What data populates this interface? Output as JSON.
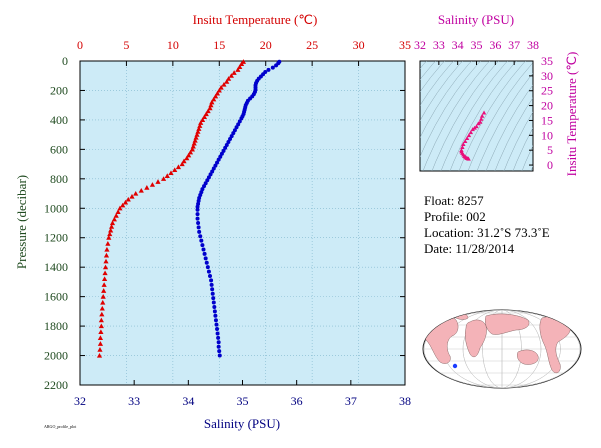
{
  "chart_data": [
    {
      "type": "scatter",
      "top_axis": {
        "label": "Insitu Temperature (℃)",
        "ticks": [
          0,
          5,
          10,
          15,
          20,
          25,
          30,
          35
        ],
        "range": [
          0,
          35
        ],
        "color": "#d40000"
      },
      "bottom_axis": {
        "label": "Salinity (PSU)",
        "ticks": [
          32,
          33,
          34,
          35,
          36,
          37,
          38
        ],
        "range": [
          32,
          38
        ],
        "color": "#000080"
      },
      "left_axis": {
        "label": "Pressure (decibar)",
        "ticks": [
          0,
          200,
          400,
          600,
          800,
          1000,
          1200,
          1400,
          1600,
          1800,
          2000,
          2200
        ],
        "range": [
          0,
          2200
        ],
        "inverted": true
      },
      "background": "#cdebf7",
      "series": [
        {
          "color": "#e00000",
          "marker": "triangle",
          "points": [
            [
              17.6,
              5
            ],
            [
              17.4,
              20
            ],
            [
              17.2,
              40
            ],
            [
              17.0,
              60
            ],
            [
              16.6,
              80
            ],
            [
              16.3,
              100
            ],
            [
              16.0,
              120
            ],
            [
              15.8,
              140
            ],
            [
              15.5,
              160
            ],
            [
              15.2,
              180
            ],
            [
              15.0,
              200
            ],
            [
              14.8,
              220
            ],
            [
              14.6,
              240
            ],
            [
              14.4,
              260
            ],
            [
              14.2,
              280
            ],
            [
              14.1,
              300
            ],
            [
              14.0,
              320
            ],
            [
              13.8,
              340
            ],
            [
              13.6,
              360
            ],
            [
              13.4,
              380
            ],
            [
              13.2,
              400
            ],
            [
              13.0,
              420
            ],
            [
              12.9,
              440
            ],
            [
              12.8,
              460
            ],
            [
              12.7,
              480
            ],
            [
              12.6,
              500
            ],
            [
              12.5,
              520
            ],
            [
              12.4,
              540
            ],
            [
              12.3,
              560
            ],
            [
              12.2,
              580
            ],
            [
              12.1,
              600
            ],
            [
              11.9,
              620
            ],
            [
              11.7,
              640
            ],
            [
              11.5,
              660
            ],
            [
              11.2,
              680
            ],
            [
              11.0,
              700
            ],
            [
              10.6,
              720
            ],
            [
              10.2,
              740
            ],
            [
              9.8,
              760
            ],
            [
              9.4,
              780
            ],
            [
              9.0,
              800
            ],
            [
              8.4,
              820
            ],
            [
              7.8,
              840
            ],
            [
              7.2,
              860
            ],
            [
              6.6,
              880
            ],
            [
              6.0,
              900
            ],
            [
              5.6,
              920
            ],
            [
              5.2,
              940
            ],
            [
              4.9,
              960
            ],
            [
              4.6,
              980
            ],
            [
              4.3,
              1000
            ],
            [
              4.1,
              1025
            ],
            [
              3.9,
              1050
            ],
            [
              3.7,
              1075
            ],
            [
              3.5,
              1100
            ],
            [
              3.4,
              1125
            ],
            [
              3.3,
              1150
            ],
            [
              3.2,
              1175
            ],
            [
              3.1,
              1200
            ],
            [
              3.0,
              1240
            ],
            [
              2.9,
              1280
            ],
            [
              2.85,
              1320
            ],
            [
              2.8,
              1360
            ],
            [
              2.75,
              1400
            ],
            [
              2.7,
              1440
            ],
            [
              2.65,
              1480
            ],
            [
              2.6,
              1520
            ],
            [
              2.55,
              1560
            ],
            [
              2.5,
              1600
            ],
            [
              2.45,
              1640
            ],
            [
              2.4,
              1680
            ],
            [
              2.35,
              1720
            ],
            [
              2.3,
              1760
            ],
            [
              2.3,
              1800
            ],
            [
              2.25,
              1840
            ],
            [
              2.2,
              1880
            ],
            [
              2.2,
              1920
            ],
            [
              2.15,
              1960
            ],
            [
              2.1,
              2000
            ]
          ]
        },
        {
          "color": "#0000cc",
          "marker": "circle",
          "points": [
            [
              35.68,
              5
            ],
            [
              35.66,
              15
            ],
            [
              35.62,
              30
            ],
            [
              35.56,
              45
            ],
            [
              35.48,
              60
            ],
            [
              35.42,
              75
            ],
            [
              35.38,
              90
            ],
            [
              35.34,
              105
            ],
            [
              35.3,
              120
            ],
            [
              35.27,
              135
            ],
            [
              35.25,
              150
            ],
            [
              35.24,
              165
            ],
            [
              35.24,
              180
            ],
            [
              35.24,
              195
            ],
            [
              35.23,
              210
            ],
            [
              35.21,
              225
            ],
            [
              35.18,
              240
            ],
            [
              35.14,
              255
            ],
            [
              35.1,
              270
            ],
            [
              35.08,
              285
            ],
            [
              35.06,
              300
            ],
            [
              35.05,
              315
            ],
            [
              35.04,
              330
            ],
            [
              35.03,
              345
            ],
            [
              35.02,
              360
            ],
            [
              35.0,
              375
            ],
            [
              34.98,
              390
            ],
            [
              34.95,
              410
            ],
            [
              34.92,
              430
            ],
            [
              34.89,
              450
            ],
            [
              34.86,
              470
            ],
            [
              34.83,
              490
            ],
            [
              34.8,
              510
            ],
            [
              34.77,
              530
            ],
            [
              34.74,
              550
            ],
            [
              34.71,
              570
            ],
            [
              34.68,
              590
            ],
            [
              34.65,
              610
            ],
            [
              34.62,
              630
            ],
            [
              34.59,
              650
            ],
            [
              34.56,
              670
            ],
            [
              34.53,
              690
            ],
            [
              34.5,
              710
            ],
            [
              34.47,
              730
            ],
            [
              34.44,
              750
            ],
            [
              34.41,
              770
            ],
            [
              34.38,
              790
            ],
            [
              34.35,
              810
            ],
            [
              34.32,
              830
            ],
            [
              34.29,
              850
            ],
            [
              34.26,
              870
            ],
            [
              34.24,
              890
            ],
            [
              34.22,
              910
            ],
            [
              34.2,
              930
            ],
            [
              34.19,
              950
            ],
            [
              34.18,
              970
            ],
            [
              34.17,
              990
            ],
            [
              34.17,
              1010
            ],
            [
              34.17,
              1040
            ],
            [
              34.17,
              1070
            ],
            [
              34.18,
              1100
            ],
            [
              34.19,
              1130
            ],
            [
              34.2,
              1160
            ],
            [
              34.22,
              1190
            ],
            [
              34.24,
              1220
            ],
            [
              34.26,
              1250
            ],
            [
              34.28,
              1280
            ],
            [
              34.3,
              1310
            ],
            [
              34.32,
              1340
            ],
            [
              34.34,
              1370
            ],
            [
              34.36,
              1400
            ],
            [
              34.38,
              1430
            ],
            [
              34.4,
              1460
            ],
            [
              34.42,
              1490
            ],
            [
              34.43,
              1520
            ],
            [
              34.44,
              1550
            ],
            [
              34.45,
              1580
            ],
            [
              34.46,
              1610
            ],
            [
              34.47,
              1640
            ],
            [
              34.48,
              1670
            ],
            [
              34.49,
              1700
            ],
            [
              34.5,
              1730
            ],
            [
              34.51,
              1760
            ],
            [
              34.52,
              1790
            ],
            [
              34.53,
              1820
            ],
            [
              34.54,
              1850
            ],
            [
              34.55,
              1880
            ],
            [
              34.56,
              1910
            ],
            [
              34.56,
              1940
            ],
            [
              34.57,
              1970
            ],
            [
              34.58,
              2000
            ]
          ]
        }
      ]
    },
    {
      "type": "scatter",
      "top_axis": {
        "label": "Salinity (PSU)",
        "ticks": [
          32,
          33,
          34,
          35,
          36,
          37,
          38
        ],
        "range": [
          32,
          38
        ],
        "color": "#c000a0"
      },
      "right_axis": {
        "label": "Insitu Temperature (℃)",
        "ticks": [
          0,
          5,
          10,
          15,
          20,
          25,
          30,
          35
        ],
        "range": [
          -2,
          35
        ],
        "color": "#c000a0"
      },
      "background": "#cdebf7",
      "series": [
        {
          "color": "#e8107a",
          "marker": "triangle",
          "points": [
            [
              35.4,
              17.6
            ],
            [
              35.3,
              16.5
            ],
            [
              35.25,
              15.5
            ],
            [
              35.2,
              14.5
            ],
            [
              35.1,
              14.0
            ],
            [
              35.0,
              13.0
            ],
            [
              34.9,
              12.5
            ],
            [
              34.8,
              12.0
            ],
            [
              34.7,
              11.0
            ],
            [
              34.6,
              10.0
            ],
            [
              34.5,
              9.0
            ],
            [
              34.4,
              8.0
            ],
            [
              34.3,
              7.0
            ],
            [
              34.25,
              6.0
            ],
            [
              34.2,
              5.0
            ],
            [
              34.2,
              4.5
            ],
            [
              34.25,
              4.0
            ],
            [
              34.3,
              3.5
            ],
            [
              34.35,
              3.0
            ],
            [
              34.4,
              2.8
            ],
            [
              34.45,
              2.5
            ],
            [
              34.5,
              2.3
            ],
            [
              34.55,
              2.2
            ],
            [
              34.58,
              2.1
            ]
          ]
        }
      ]
    }
  ],
  "info": {
    "float": "Float:  8257",
    "profile": "Profile:  002",
    "location": "Location:  31.2˚S  73.3˚E",
    "date": "Date:  11/28/2014"
  },
  "map": {
    "marker_color": "#1a3cff",
    "land_color": "#f4b3b8",
    "ocean_color": "#ffffff"
  },
  "footer_tag": "ARGO_profile_plot"
}
